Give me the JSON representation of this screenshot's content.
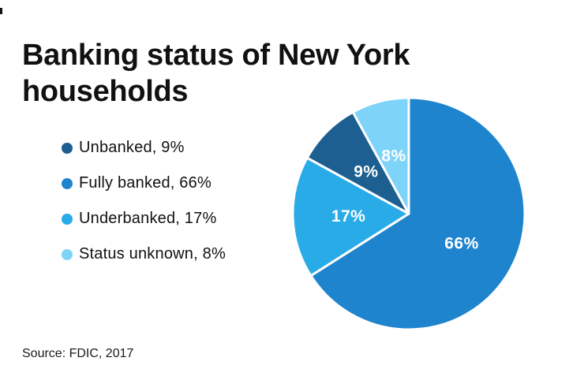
{
  "title": {
    "full": "Banking status of New York households",
    "line1": "Banking status of New York",
    "line2": "households"
  },
  "legend": {
    "items": [
      {
        "label": "Unbanked, 9%",
        "color": "#1d5f90",
        "icon": "legend-dot"
      },
      {
        "label": "Fully banked, 66%",
        "color": "#1e84ce",
        "icon": "legend-dot"
      },
      {
        "label": "Underbanked, 17%",
        "color": "#29abe8",
        "icon": "legend-dot"
      },
      {
        "label": "Status unknown, 8%",
        "color": "#7ed3f9",
        "icon": "legend-dot"
      }
    ]
  },
  "chart_data": {
    "type": "pie",
    "title": "Banking status of New York households",
    "start_angle_deg": 0,
    "direction": "clockwise",
    "legend_position": "left",
    "separator_color": "#ffffff",
    "slices": [
      {
        "label": "Fully banked",
        "value": 66,
        "display": "66%",
        "color": "#1e84ce"
      },
      {
        "label": "Underbanked",
        "value": 17,
        "display": "17%",
        "color": "#29abe8"
      },
      {
        "label": "Unbanked",
        "value": 9,
        "display": "9%",
        "color": "#1d5f90"
      },
      {
        "label": "Status unknown",
        "value": 8,
        "display": "8%",
        "color": "#7ed3f9"
      }
    ]
  },
  "source": "Source: FDIC, 2017"
}
